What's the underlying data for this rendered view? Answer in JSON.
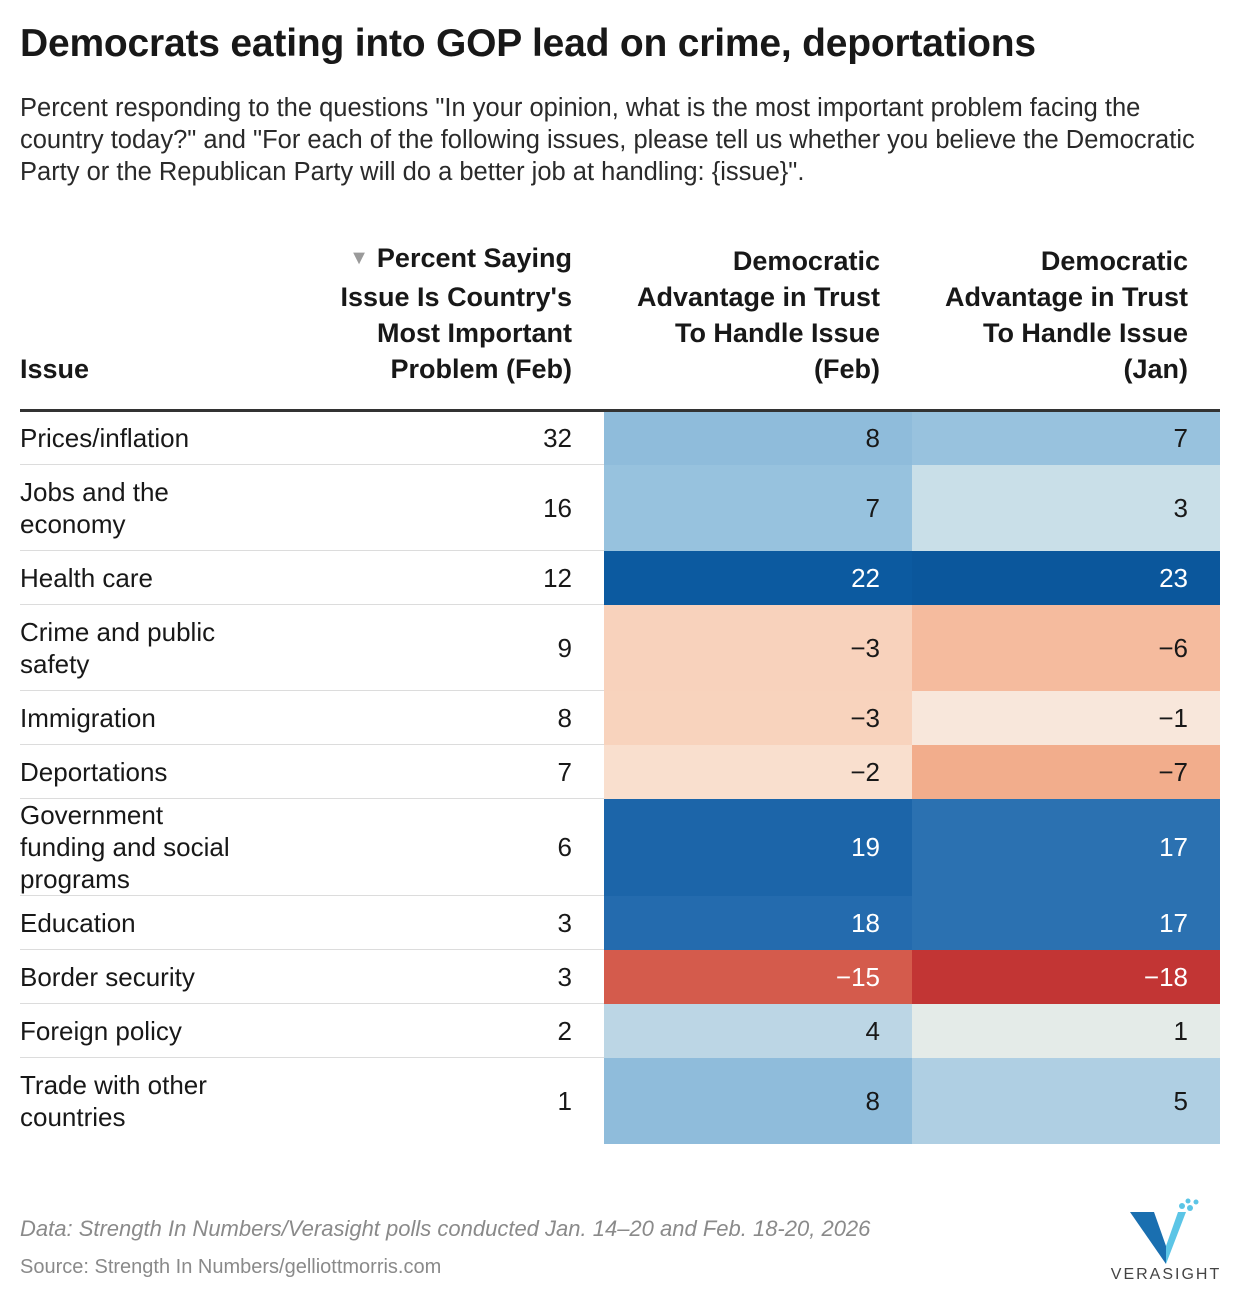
{
  "header": {
    "title": "Democrats eating into GOP lead on crime, deportations",
    "subtitle": "Percent responding to the questions \"In your opinion, what is the most important problem facing the country today?\" and \"For each of the following issues, please tell us whether you believe the Democratic Party or the Republican Party will do a better job at handling: {issue}\"."
  },
  "chart_data": {
    "type": "table",
    "columns": [
      "Issue",
      "Percent Saying Issue Is Country's Most Important Problem (Feb)",
      "Democratic Advantage in Trust To Handle Issue (Feb)",
      "Democratic Advantage in Trust To Handle Issue (Jan)"
    ],
    "sort": {
      "column": 1,
      "direction": "descending",
      "icon": "sort-descending-icon",
      "glyph": "▼"
    },
    "rows": [
      {
        "issue": "Prices/inflation",
        "pct": 32,
        "feb": "8",
        "jan": "7",
        "feb_value": 8,
        "jan_value": 7,
        "feb_color": "#8fbcdb",
        "jan_color": "#98c2de"
      },
      {
        "issue": "Jobs and the economy",
        "pct": 16,
        "feb": "7",
        "jan": "3",
        "feb_value": 7,
        "jan_value": 3,
        "feb_color": "#97c2de",
        "jan_color": "#c9dfe8"
      },
      {
        "issue": "Health care",
        "pct": 12,
        "feb": "22",
        "jan": "23",
        "feb_value": 22,
        "jan_value": 23,
        "feb_color": "#0c5aa0",
        "jan_color": "#0b579c"
      },
      {
        "issue": "Crime and public safety",
        "pct": 9,
        "feb": "−3",
        "jan": "−6",
        "feb_value": -3,
        "jan_value": -6,
        "feb_color": "#f8d2bc",
        "jan_color": "#f5bb9e"
      },
      {
        "issue": "Immigration",
        "pct": 8,
        "feb": "−3",
        "jan": "−1",
        "feb_value": -3,
        "jan_value": -1,
        "feb_color": "#f8d3bd",
        "jan_color": "#f8e7db"
      },
      {
        "issue": "Deportations",
        "pct": 7,
        "feb": "−2",
        "jan": "−7",
        "feb_value": -2,
        "jan_value": -7,
        "feb_color": "#f9dfce",
        "jan_color": "#f2ad8c"
      },
      {
        "issue": "Government funding and social programs",
        "pct": 6,
        "feb": "19",
        "jan": "17",
        "feb_value": 19,
        "jan_value": 17,
        "feb_color": "#1c65a9",
        "jan_color": "#2b71b1"
      },
      {
        "issue": "Education",
        "pct": 3,
        "feb": "18",
        "jan": "17",
        "feb_value": 18,
        "jan_value": 17,
        "feb_color": "#246bae",
        "jan_color": "#2b71b1"
      },
      {
        "issue": "Border security",
        "pct": 3,
        "feb": "−15",
        "jan": "−18",
        "feb_value": -15,
        "jan_value": -18,
        "feb_color": "#d45b4c",
        "jan_color": "#c23534"
      },
      {
        "issue": "Foreign policy",
        "pct": 2,
        "feb": "4",
        "jan": "1",
        "feb_value": 4,
        "jan_value": 1,
        "feb_color": "#bcd6e5",
        "jan_color": "#e4ebe8"
      },
      {
        "issue": "Trade with other countries",
        "pct": 1,
        "feb": "8",
        "jan": "5",
        "feb_value": 8,
        "jan_value": 5,
        "feb_color": "#8fbcdb",
        "jan_color": "#afcfe3"
      }
    ],
    "diverging_scale": {
      "negative": "republican-red",
      "positive": "democratic-blue",
      "midpoint": 0
    }
  },
  "footer": {
    "data_note": "Data: Strength In Numbers/Verasight polls conducted Jan. 14–20 and Feb. 18-20, 2026",
    "source": "Source: Strength In Numbers/gelliottmorris.com"
  },
  "logo": {
    "text": "VERASIGHT",
    "icon": "verasight-logo-icon",
    "color_dark": "#1a6fb0",
    "color_light": "#5cc5e6"
  }
}
